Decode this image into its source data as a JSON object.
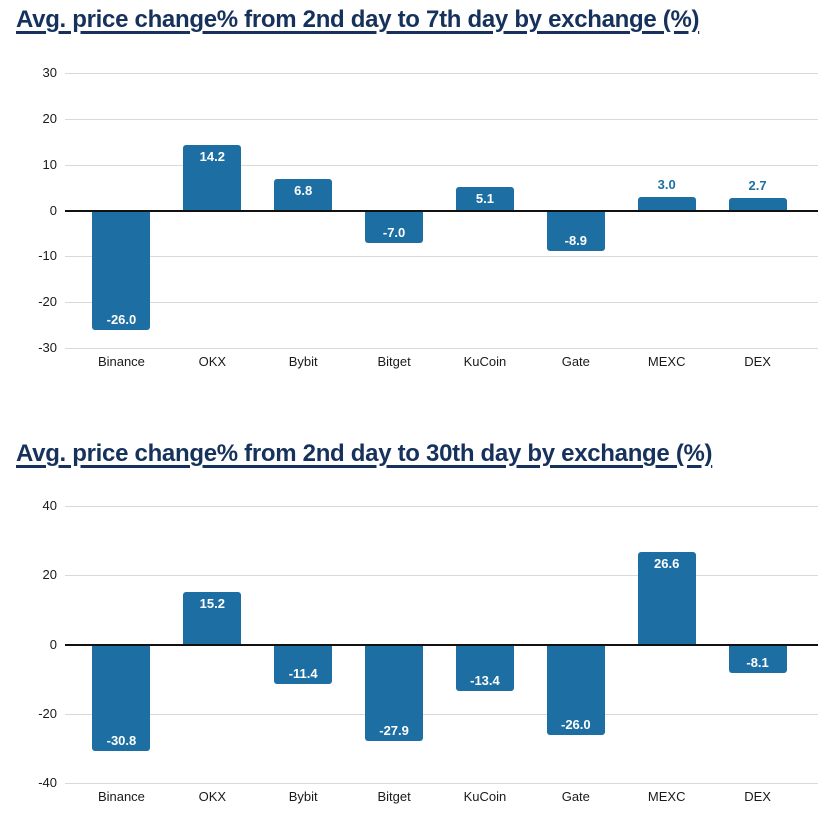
{
  "style": {
    "bar_color": "#1d6fa3",
    "title_color": "#16325c",
    "grid_color": "#d9d9d9",
    "zero_line_color": "#111111",
    "axis_text_color": "#1a1a1a",
    "label_inside_color": "#ffffff",
    "label_outside_color": "#1d6fa3",
    "background": "#ffffff"
  },
  "chart_data": [
    {
      "type": "bar",
      "title": "Avg. price change% from 2nd day to 7th day by exchange (%)",
      "categories": [
        "Binance",
        "OKX",
        "Bybit",
        "Bitget",
        "KuCoin",
        "Gate",
        "MEXC",
        "DEX"
      ],
      "values": [
        -26.0,
        14.2,
        6.8,
        -7.0,
        5.1,
        -8.9,
        3.0,
        2.7
      ],
      "value_labels": [
        "-26.0",
        "14.2",
        "6.8",
        "-7.0",
        "5.1",
        "-8.9",
        "3.0",
        "2.7"
      ],
      "xlabel": "",
      "ylabel": "",
      "ylim": [
        -30,
        30
      ],
      "yticks": [
        30,
        20,
        10,
        0,
        -10,
        -20,
        -30
      ],
      "grid": true,
      "legend": "none"
    },
    {
      "type": "bar",
      "title": "Avg. price change% from 2nd day to 30th day by exchange (%)",
      "categories": [
        "Binance",
        "OKX",
        "Bybit",
        "Bitget",
        "KuCoin",
        "Gate",
        "MEXC",
        "DEX"
      ],
      "values": [
        -30.8,
        15.2,
        -11.4,
        -27.9,
        -13.4,
        -26.0,
        26.6,
        -8.1
      ],
      "value_labels": [
        "-30.8",
        "15.2",
        "-11.4",
        "-27.9",
        "-13.4",
        "-26.0",
        "26.6",
        "-8.1"
      ],
      "xlabel": "",
      "ylabel": "",
      "ylim": [
        -40,
        40
      ],
      "yticks": [
        40,
        20,
        0,
        -20,
        -40
      ],
      "grid": true,
      "legend": "none"
    }
  ]
}
